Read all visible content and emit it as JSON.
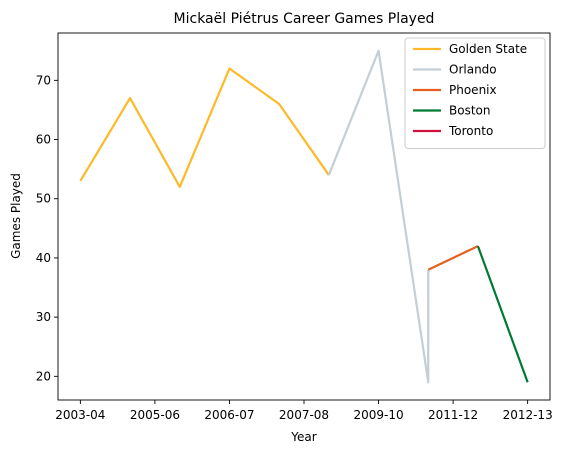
{
  "chart_data": {
    "type": "line",
    "title": "Mickaël Piétrus Career Games Played",
    "xlabel": "Year",
    "ylabel": "Games Played",
    "x_tick_labels": [
      "2003-04",
      "2005-06",
      "2006-07",
      "2007-08",
      "2009-10",
      "2011-12",
      "2012-13"
    ],
    "yticks": [
      20,
      30,
      40,
      50,
      60,
      70
    ],
    "ylim": [
      16,
      78
    ],
    "xlim": [
      -0.45,
      9.45
    ],
    "grid": false,
    "legend_position": "top-right",
    "series": [
      {
        "name": "Golden State",
        "color": "#FDB927",
        "points": [
          {
            "x": 0,
            "y": 53
          },
          {
            "x": 1,
            "y": 67
          },
          {
            "x": 2,
            "y": 52
          },
          {
            "x": 3,
            "y": 72
          },
          {
            "x": 4,
            "y": 66
          },
          {
            "x": 5,
            "y": 54
          }
        ]
      },
      {
        "name": "Orlando",
        "color": "#C4CED4",
        "points": [
          {
            "x": 5,
            "y": 54
          },
          {
            "x": 6,
            "y": 75
          },
          {
            "x": 7,
            "y": 19
          },
          {
            "x": 7,
            "y": 38
          }
        ]
      },
      {
        "name": "Phoenix",
        "color": "#E56020",
        "points": [
          {
            "x": 7,
            "y": 38
          },
          {
            "x": 8,
            "y": 42
          }
        ]
      },
      {
        "name": "Boston",
        "color": "#007A33",
        "points": [
          {
            "x": 8,
            "y": 42
          },
          {
            "x": 9,
            "y": 19
          }
        ]
      },
      {
        "name": "Toronto",
        "color": "#CE1141",
        "points": []
      }
    ]
  }
}
